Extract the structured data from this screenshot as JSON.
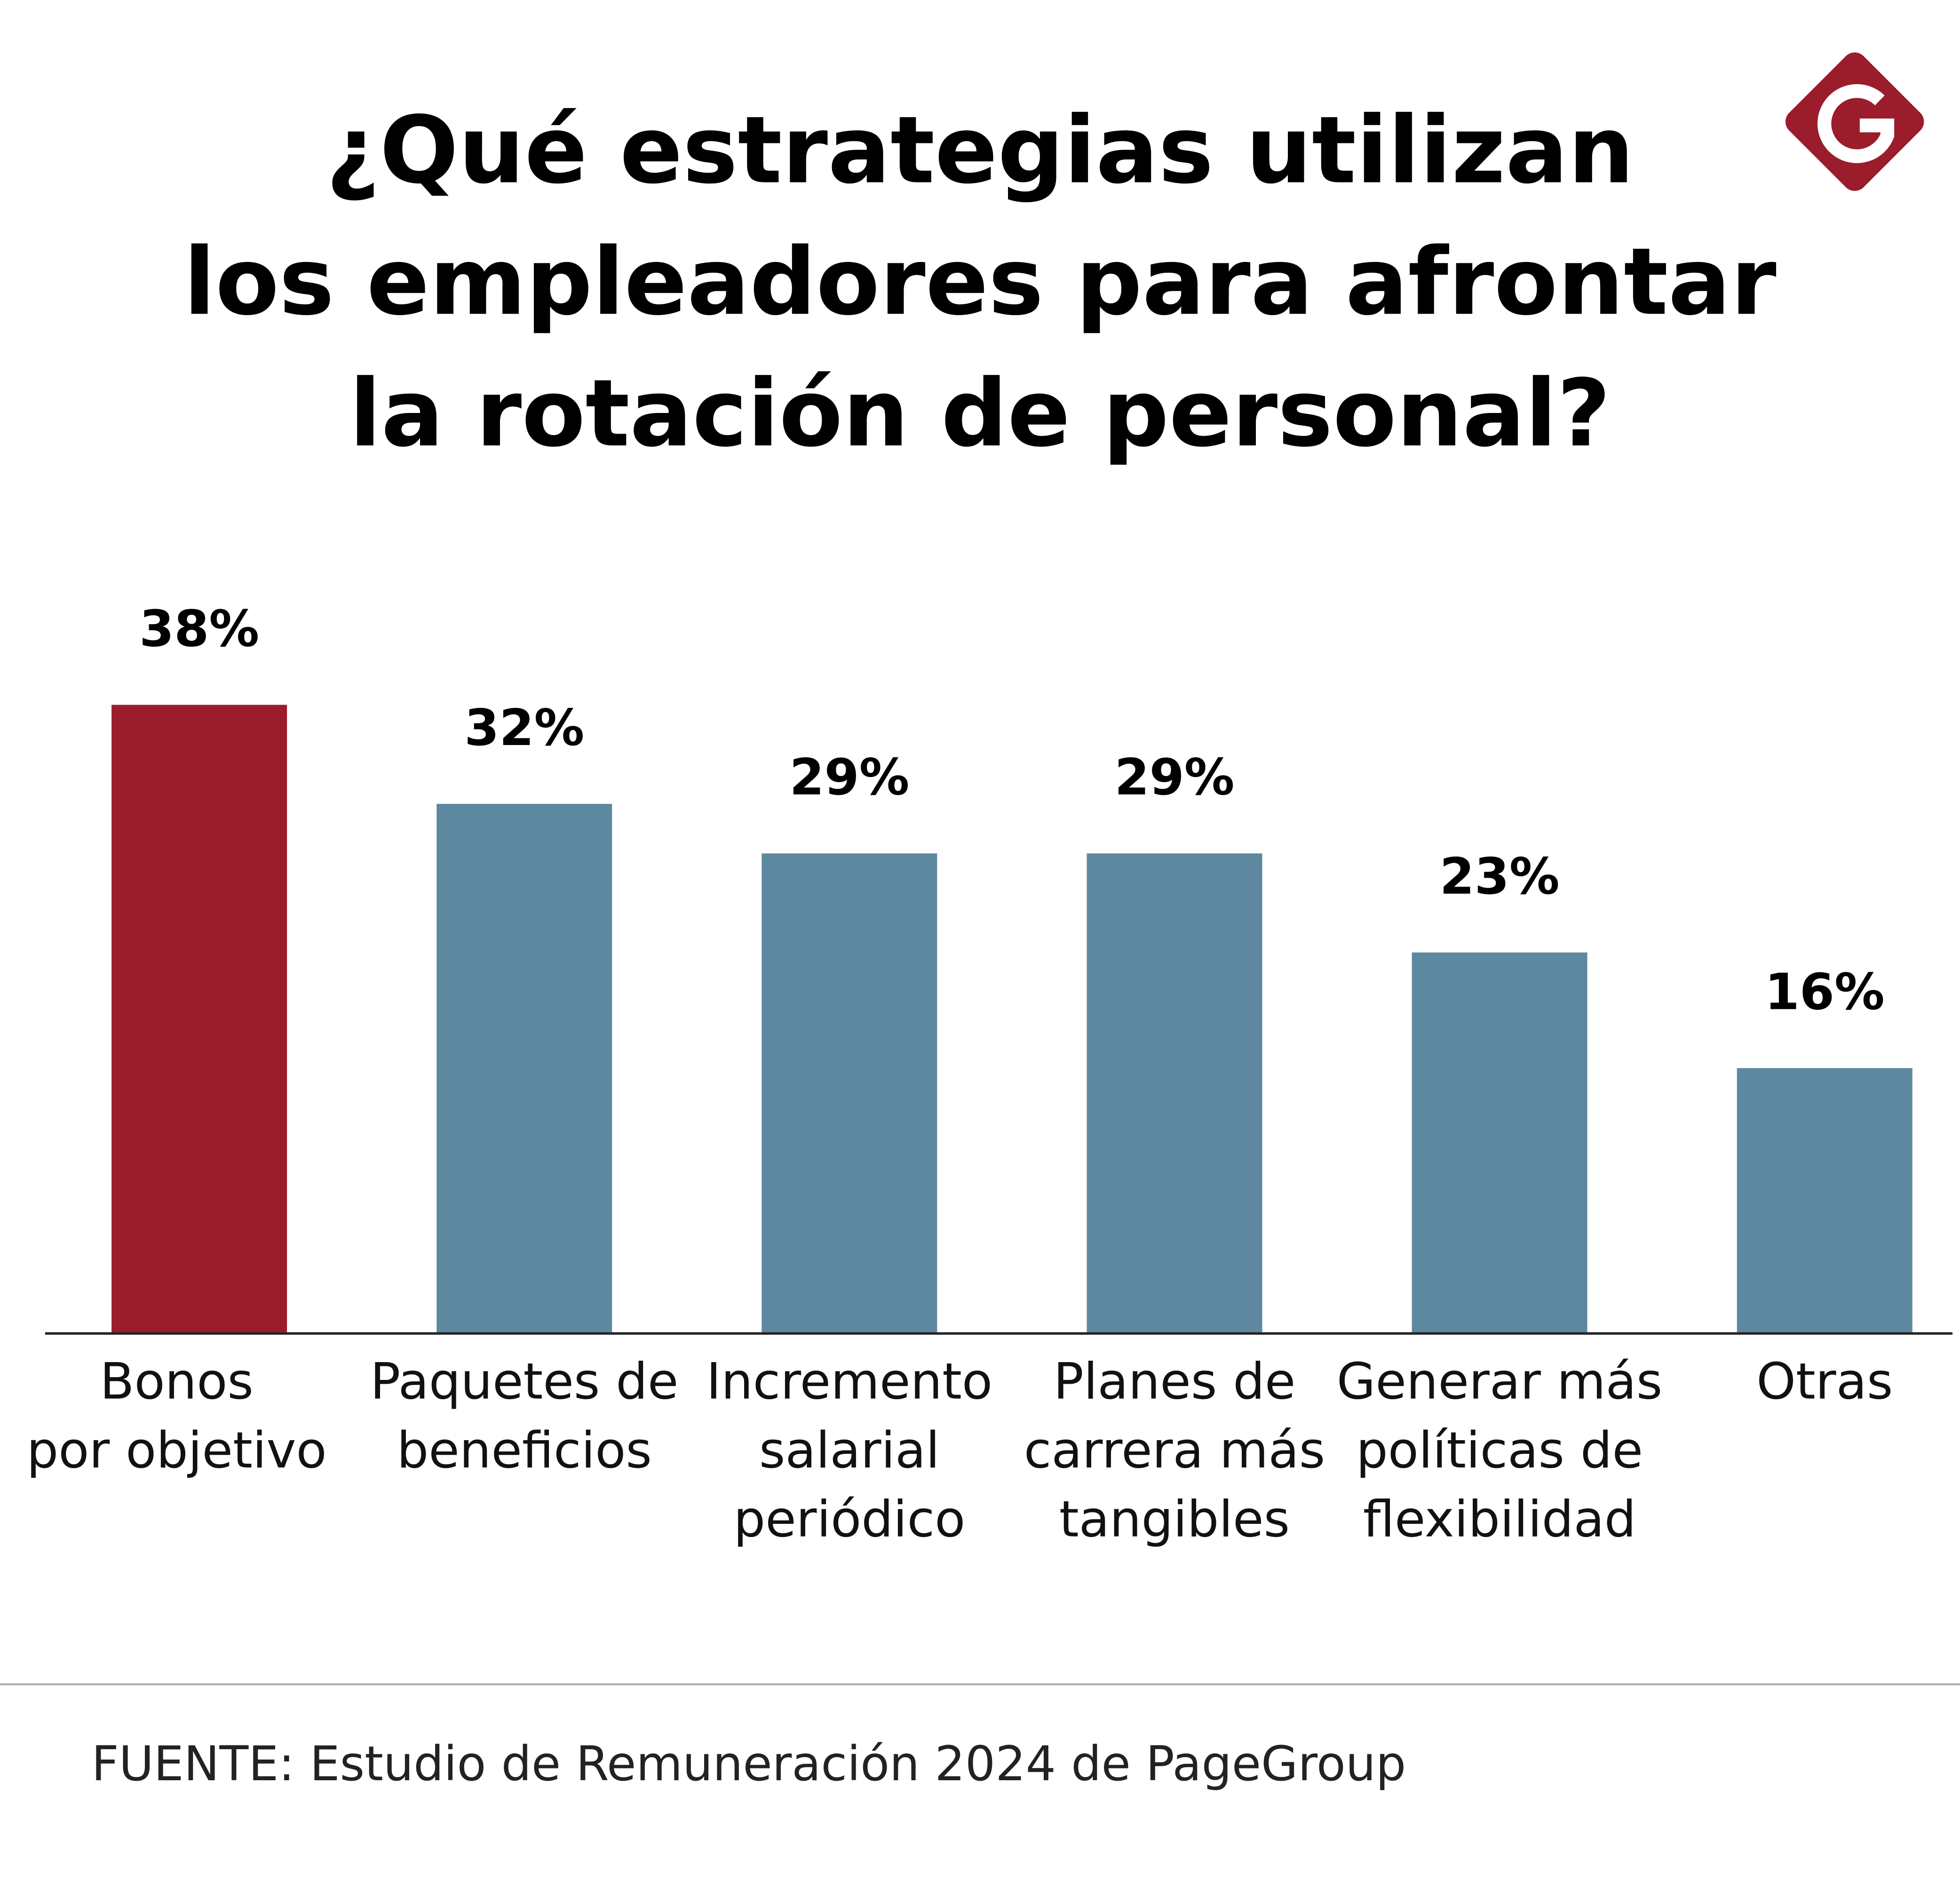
{
  "chart_data": {
    "type": "bar",
    "title": [
      "¿Qué estrategias utilizan",
      "los empleadores para afrontar",
      "la rotación de personal?"
    ],
    "categories": [
      [
        "Bonos",
        "por objetivo"
      ],
      [
        "Paquetes de",
        "beneficios"
      ],
      [
        "Incremento",
        "salarial",
        "periódico"
      ],
      [
        "Planes de",
        "carrera más",
        "tangibles"
      ],
      [
        "Generar más",
        "políticas de",
        "flexibilidad"
      ],
      [
        "Otras"
      ]
    ],
    "values": [
      38,
      32,
      29,
      29,
      23,
      16
    ],
    "value_labels": [
      "38%",
      "32%",
      "29%",
      "29%",
      "23%",
      "16%"
    ],
    "colors": [
      "#9b1c2a",
      "#5e889f",
      "#5e889f",
      "#5e889f",
      "#5e889f",
      "#5e889f"
    ],
    "ylim": [
      0,
      40
    ],
    "source": "FUENTE: Estudio de Remuneración 2024 de PageGroup"
  }
}
